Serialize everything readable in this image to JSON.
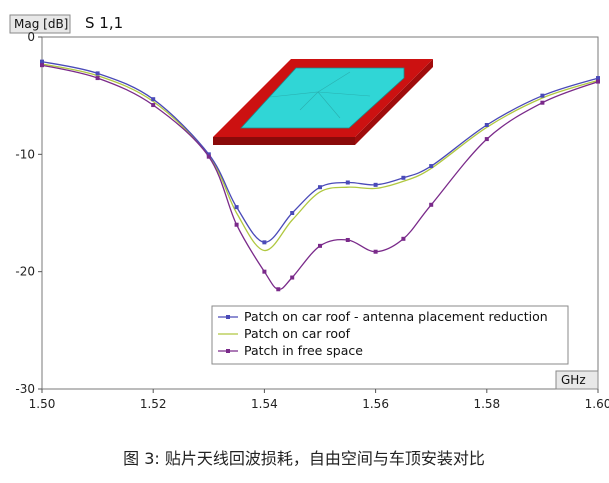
{
  "chart_data": {
    "type": "line",
    "title": "S 1,1",
    "ylabel": "Mag [dB]",
    "xlabel": "GHz",
    "xlim": [
      1.5,
      1.6
    ],
    "ylim": [
      -30,
      0
    ],
    "x_ticks": [
      "1.50",
      "1.52",
      "1.54",
      "1.56",
      "1.58",
      "1.60"
    ],
    "y_ticks": [
      "0",
      "-10",
      "-20",
      "-30"
    ],
    "x_tick_values": [
      1.5,
      1.52,
      1.54,
      1.56,
      1.58,
      1.6
    ],
    "y_tick_values": [
      0,
      -10,
      -20,
      -30
    ],
    "grid": false,
    "legend_position": "bottom-right",
    "series": [
      {
        "name": "Patch on car roof - antenna placement reduction",
        "color": "#4a4ab8",
        "marker": true,
        "x": [
          1.5,
          1.51,
          1.52,
          1.53,
          1.535,
          1.54,
          1.545,
          1.55,
          1.555,
          1.56,
          1.565,
          1.57,
          1.58,
          1.59,
          1.6
        ],
        "y": [
          -2.1,
          -3.1,
          -5.3,
          -10.0,
          -14.5,
          -17.5,
          -15.0,
          -12.8,
          -12.4,
          -12.6,
          -12.0,
          -11.0,
          -7.5,
          -5.0,
          -3.5
        ]
      },
      {
        "name": "Patch on car roof",
        "color": "#b0c840",
        "marker": false,
        "x": [
          1.5,
          1.51,
          1.52,
          1.53,
          1.535,
          1.54,
          1.545,
          1.55,
          1.555,
          1.56,
          1.565,
          1.57,
          1.58,
          1.59,
          1.6
        ],
        "y": [
          -2.3,
          -3.3,
          -5.5,
          -10.1,
          -15.0,
          -18.2,
          -15.6,
          -13.2,
          -12.8,
          -12.9,
          -12.3,
          -11.2,
          -7.7,
          -5.2,
          -3.7
        ]
      },
      {
        "name": "Patch in free space",
        "color": "#7a2a8a",
        "marker": true,
        "x": [
          1.5,
          1.51,
          1.52,
          1.53,
          1.535,
          1.54,
          1.5425,
          1.545,
          1.55,
          1.555,
          1.56,
          1.565,
          1.57,
          1.58,
          1.59,
          1.6
        ],
        "y": [
          -2.4,
          -3.5,
          -5.8,
          -10.2,
          -16.0,
          -20.0,
          -21.5,
          -20.5,
          -17.8,
          -17.3,
          -18.3,
          -17.2,
          -14.3,
          -8.7,
          -5.6,
          -3.8
        ]
      }
    ],
    "caption": "图 3: 贴片天线回波损耗，自由空间与车顶安装对比",
    "colors": {
      "plot_background": "#ffffff",
      "axis_box": "#e8e8e8",
      "roof_frame": "#cc1111",
      "patch_fill": "#30d6d6"
    }
  }
}
